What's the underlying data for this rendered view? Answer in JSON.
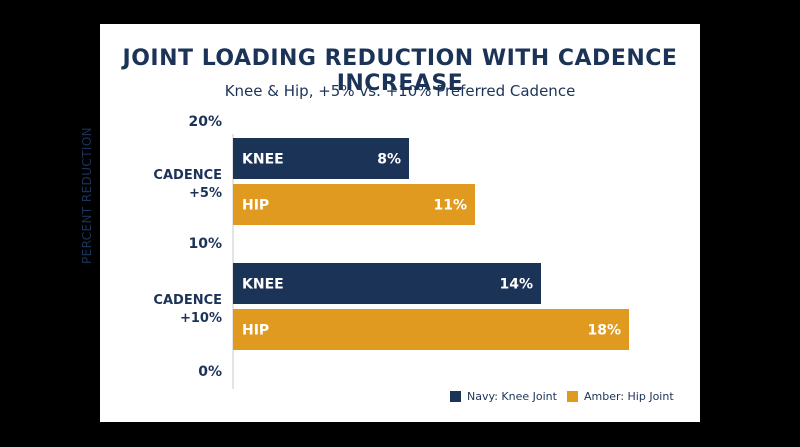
{
  "colors": {
    "background": "#000000",
    "card": "#ffffff",
    "navy": "#1c3358",
    "amber": "#e19a20",
    "text": "#1c3358"
  },
  "chart_data": {
    "type": "bar",
    "orientation": "horizontal",
    "title": "JOINT LOADING REDUCTION WITH CADENCE INCREASE",
    "subtitle": "Knee & Hip, +5% vs. +10% Preferred Cadence",
    "ylabel": "PERCENT REDUCTION",
    "axis_ticks": [
      "20%",
      "10%",
      "0%"
    ],
    "grid": false,
    "legend_position": "bottom-right",
    "groups": [
      {
        "label_line1": "CADENCE",
        "label_line2": "+5%",
        "bars": [
          {
            "label": "KNEE",
            "value": 8,
            "value_label": "8%"
          },
          {
            "label": "HIP",
            "value": 11,
            "value_label": "11%"
          }
        ]
      },
      {
        "label_line1": "CADENCE",
        "label_line2": "+10%",
        "bars": [
          {
            "label": "KNEE",
            "value": 14,
            "value_label": "14%"
          },
          {
            "label": "HIP",
            "value": 18,
            "value_label": "18%"
          }
        ]
      }
    ],
    "value_max": 20,
    "legend": [
      {
        "label": "Navy: Knee Joint",
        "color": "#1c3358"
      },
      {
        "label": "Amber: Hip Joint",
        "color": "#e19a20"
      }
    ]
  }
}
